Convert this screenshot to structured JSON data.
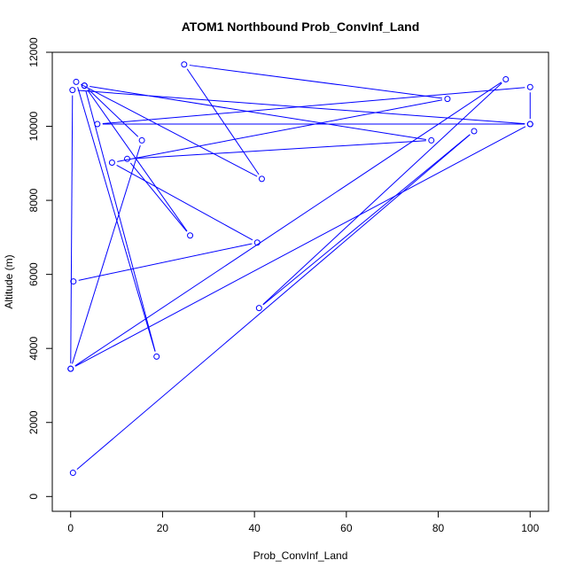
{
  "chart_data": {
    "type": "line",
    "title": "ATOM1 Northbound Prob_ConvInf_Land",
    "xlabel": "Prob_ConvInf_Land",
    "ylabel": "Altitude (m)",
    "xlim": [
      -4,
      104
    ],
    "ylim": [
      -400,
      12000
    ],
    "xticks": [
      0,
      20,
      40,
      60,
      80,
      100
    ],
    "yticks": [
      0,
      2000,
      4000,
      6000,
      8000,
      10000,
      12000
    ],
    "grid": false,
    "series": [
      {
        "color": "#0000ff",
        "markers": "open-circle",
        "x": [
          0.5,
          87.8,
          41.0,
          94.7,
          0.0,
          0.4,
          100.0,
          100.0,
          5.8,
          100.0,
          0.0,
          15.5,
          3.0,
          78.5,
          12.3,
          26.0,
          3.0,
          18.7,
          1.2,
          41.6,
          24.7,
          82.0,
          9.0,
          40.6,
          0.6
        ],
        "y": [
          640,
          9870,
          5090,
          11270,
          3450,
          10980,
          10060,
          11060,
          10060,
          10060,
          3450,
          9620,
          11100,
          9620,
          9120,
          7050,
          11100,
          3780,
          11200,
          8580,
          11670,
          10740,
          9020,
          6860,
          5810
        ]
      }
    ]
  }
}
